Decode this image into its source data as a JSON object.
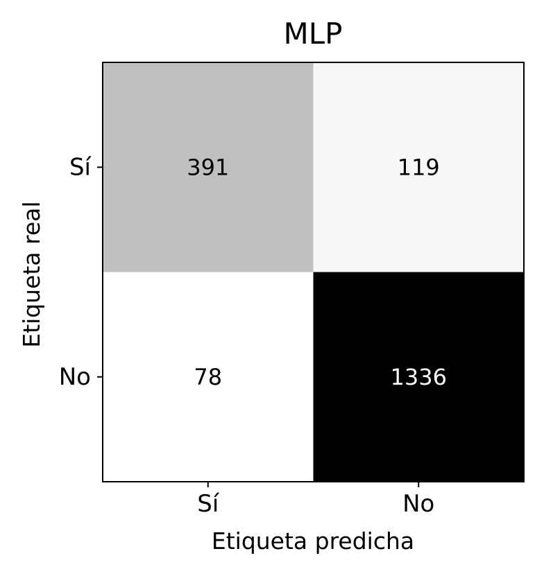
{
  "chart_data": {
    "type": "heatmap",
    "title": "MLP",
    "xlabel": "Etiqueta predicha",
    "ylabel": "Etiqueta real",
    "x_categories": [
      "Sí",
      "No"
    ],
    "y_categories": [
      "Sí",
      "No"
    ],
    "values": [
      [
        391,
        119
      ],
      [
        78,
        1336
      ]
    ],
    "colormap": "greys",
    "color_low": "#ffffff",
    "color_high": "#000000",
    "grid": false,
    "colorbar": false
  }
}
